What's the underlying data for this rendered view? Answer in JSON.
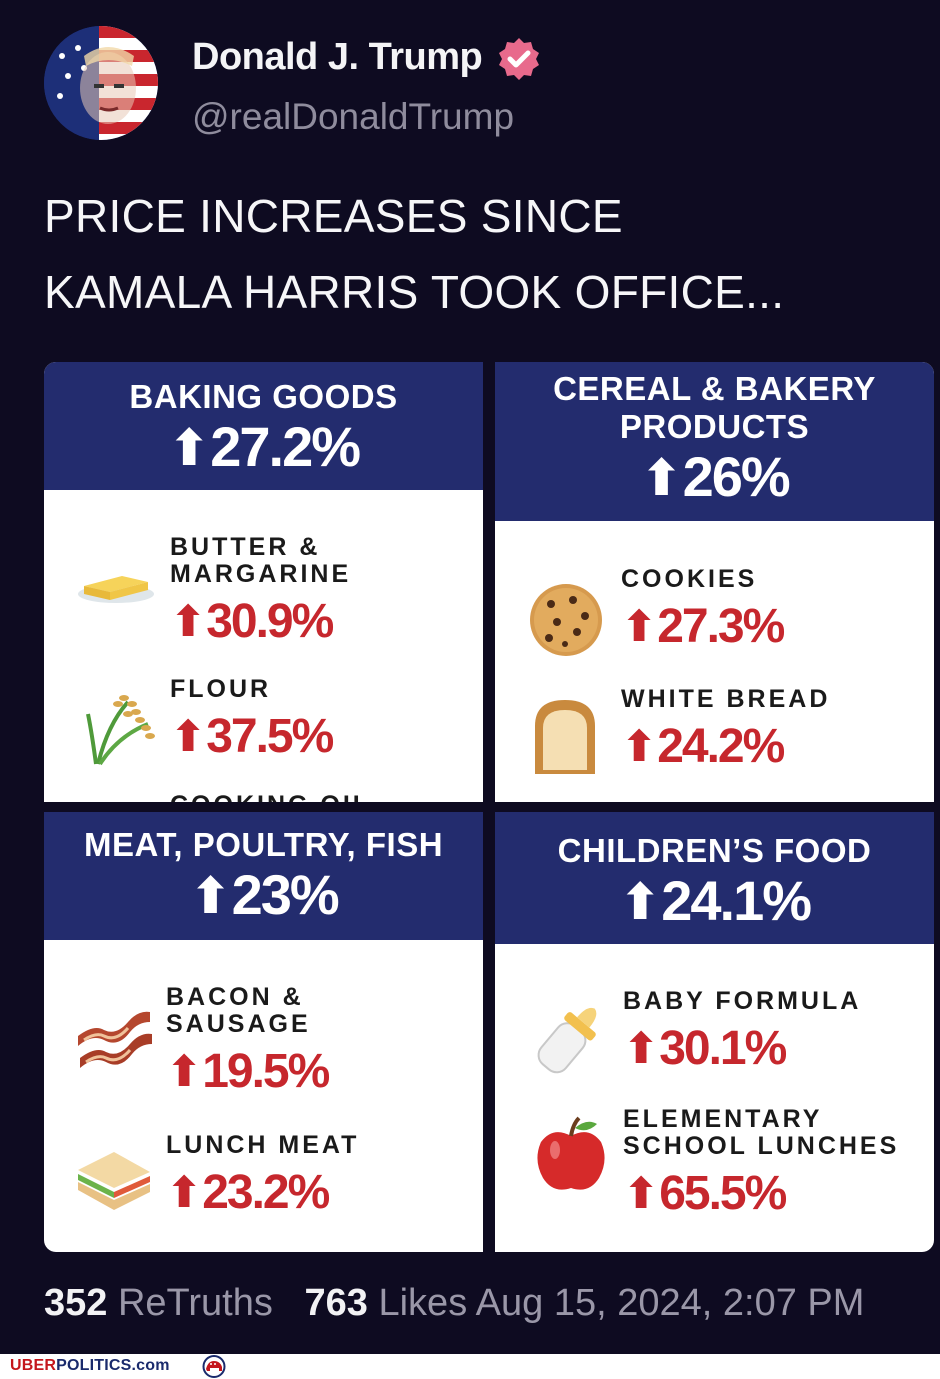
{
  "author": {
    "name": "Donald J. Trump",
    "handle": "@realDonaldTrump"
  },
  "post": {
    "line1": "PRICE INCREASES SINCE",
    "line2": "KAMALA HARRIS TOOK OFFICE..."
  },
  "cards": {
    "baking": {
      "title": "BAKING GOODS",
      "pct": "27.2%",
      "items": [
        {
          "name1": "BUTTER &",
          "name2": "MARGARINE",
          "pct": "30.9%",
          "icon": "butter-icon"
        },
        {
          "name1": "FLOUR",
          "name2": "",
          "pct": "37.5%",
          "icon": "rice-plant-icon"
        },
        {
          "name1": "COOKING OIL",
          "name2": "",
          "pct": "",
          "icon": ""
        }
      ]
    },
    "cereal": {
      "title1": "CEREAL & BAKERY",
      "title2": "PRODUCTS",
      "pct": "26%",
      "items": [
        {
          "name1": "COOKIES",
          "pct": "27.3%",
          "icon": "cookie-icon"
        },
        {
          "name1": "WHITE BREAD",
          "pct": "24.2%",
          "icon": "bread-icon"
        }
      ]
    },
    "meat": {
      "title": "MEAT, POULTRY, FISH",
      "pct": "23%",
      "items": [
        {
          "name1": "BACON &",
          "name2": "SAUSAGE",
          "pct": "19.5%",
          "icon": "bacon-icon"
        },
        {
          "name1": "LUNCH MEAT",
          "name2": "",
          "pct": "23.2%",
          "icon": "sandwich-icon"
        }
      ]
    },
    "children": {
      "title": "CHILDREN’S FOOD",
      "pct": "24.1%",
      "items": [
        {
          "name1": "BABY FORMULA",
          "name2": "",
          "pct": "30.1%",
          "icon": "baby-bottle-icon"
        },
        {
          "name1": "ELEMENTARY",
          "name2": "SCHOOL LUNCHES",
          "pct": "65.5%",
          "icon": "apple-icon"
        }
      ]
    }
  },
  "stats": {
    "retruths_count": "352",
    "retruths_label": "ReTruths",
    "likes_count": "763",
    "likes_label": "Likes",
    "date": "Aug 15, 2024, 2:07 PM"
  },
  "footer": {
    "brand_part1": "UBER",
    "brand_part2": "POLITICS.com"
  },
  "colors": {
    "background": "#0e0b21",
    "header_navy": "#232c6e",
    "increase_red": "#c6272d",
    "verified_pink": "#e86a8c"
  }
}
